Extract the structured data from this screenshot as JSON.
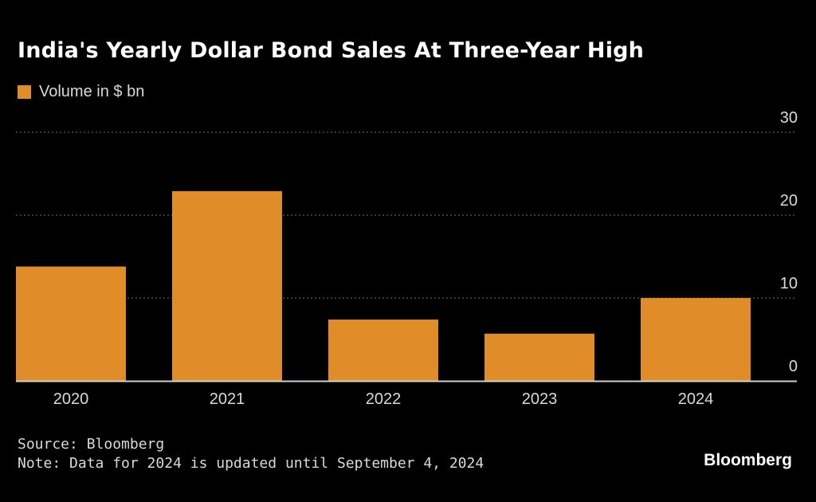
{
  "chart_data": {
    "type": "bar",
    "title": "India's Yearly Dollar Bond Sales At Three-Year High",
    "categories": [
      "2020",
      "2021",
      "2022",
      "2023",
      "2024"
    ],
    "series": [
      {
        "name": "Volume in $ bn",
        "values": [
          13.8,
          22.9,
          7.4,
          5.7,
          10.0
        ]
      }
    ],
    "ylim": [
      0,
      30
    ],
    "yticks": [
      0,
      10,
      20,
      30
    ],
    "grid": true,
    "legend": "top-left",
    "y_axis_position": "right",
    "bar_color": "#e08c28"
  },
  "footer": {
    "source": "Source: Bloomberg",
    "note": "Note: Data for 2024 is updated until September 4, 2024"
  },
  "brand": "Bloomberg",
  "colors": {
    "background": "#000000",
    "bar": "#e08c28",
    "grid": "#5a5a5a",
    "axis": "#cfcfcf",
    "text": "#d9d9d9"
  }
}
